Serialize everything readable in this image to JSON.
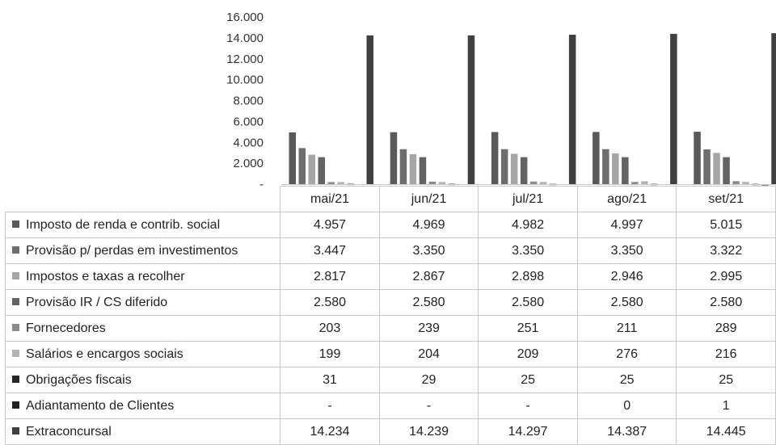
{
  "chart_data": {
    "type": "bar",
    "categories": [
      "mai/21",
      "jun/21",
      "jul/21",
      "ago/21",
      "set/21"
    ],
    "y_ticks": [
      "16.000",
      "14.000",
      "12.000",
      "10.000",
      "8.000",
      "6.000",
      "4.000",
      "2.000",
      "-"
    ],
    "ylim": [
      0,
      16000
    ],
    "grid": false,
    "legend": "table",
    "series": [
      {
        "name": "Imposto de renda e contrib. social",
        "color": "#595959",
        "values": [
          4957,
          4969,
          4982,
          4997,
          5015
        ],
        "labels": [
          "4.957",
          "4.969",
          "4.982",
          "4.997",
          "5.015"
        ]
      },
      {
        "name": "Provisão p/ perdas em investimentos",
        "color": "#6d6d6d",
        "values": [
          3447,
          3350,
          3350,
          3350,
          3322
        ],
        "labels": [
          "3.447",
          "3.350",
          "3.350",
          "3.350",
          "3.322"
        ]
      },
      {
        "name": "Impostos e taxas a recolher",
        "color": "#a6a6a6",
        "values": [
          2817,
          2867,
          2898,
          2946,
          2995
        ],
        "labels": [
          "2.817",
          "2.867",
          "2.898",
          "2.946",
          "2.995"
        ]
      },
      {
        "name": "Provisão IR / CS diferido",
        "color": "#636363",
        "values": [
          2580,
          2580,
          2580,
          2580,
          2580
        ],
        "labels": [
          "2.580",
          "2.580",
          "2.580",
          "2.580",
          "2.580"
        ]
      },
      {
        "name": "Fornecedores",
        "color": "#8c8c8c",
        "values": [
          203,
          239,
          251,
          211,
          289
        ],
        "labels": [
          "203",
          "239",
          "251",
          "211",
          "289"
        ]
      },
      {
        "name": "Salários e encargos sociais",
        "color": "#b3b3b3",
        "values": [
          199,
          204,
          209,
          276,
          216
        ],
        "labels": [
          "199",
          "204",
          "209",
          "276",
          "216"
        ]
      },
      {
        "name": "Obrigações fiscais",
        "color": "#262626",
        "values": [
          31,
          29,
          25,
          25,
          25
        ],
        "labels": [
          "31",
          "29",
          "25",
          "25",
          "25"
        ]
      },
      {
        "name": "Adiantamento de Clientes",
        "color": "#1f1f1f",
        "values": [
          0,
          0,
          0,
          0,
          1
        ],
        "labels": [
          "-",
          "-",
          "-",
          "0",
          "1"
        ]
      },
      {
        "name": "Extraconcursal",
        "color": "#404040",
        "values": [
          14234,
          14239,
          14297,
          14387,
          14445
        ],
        "labels": [
          "14.234",
          "14.239",
          "14.297",
          "14.387",
          "14.445"
        ]
      }
    ]
  }
}
